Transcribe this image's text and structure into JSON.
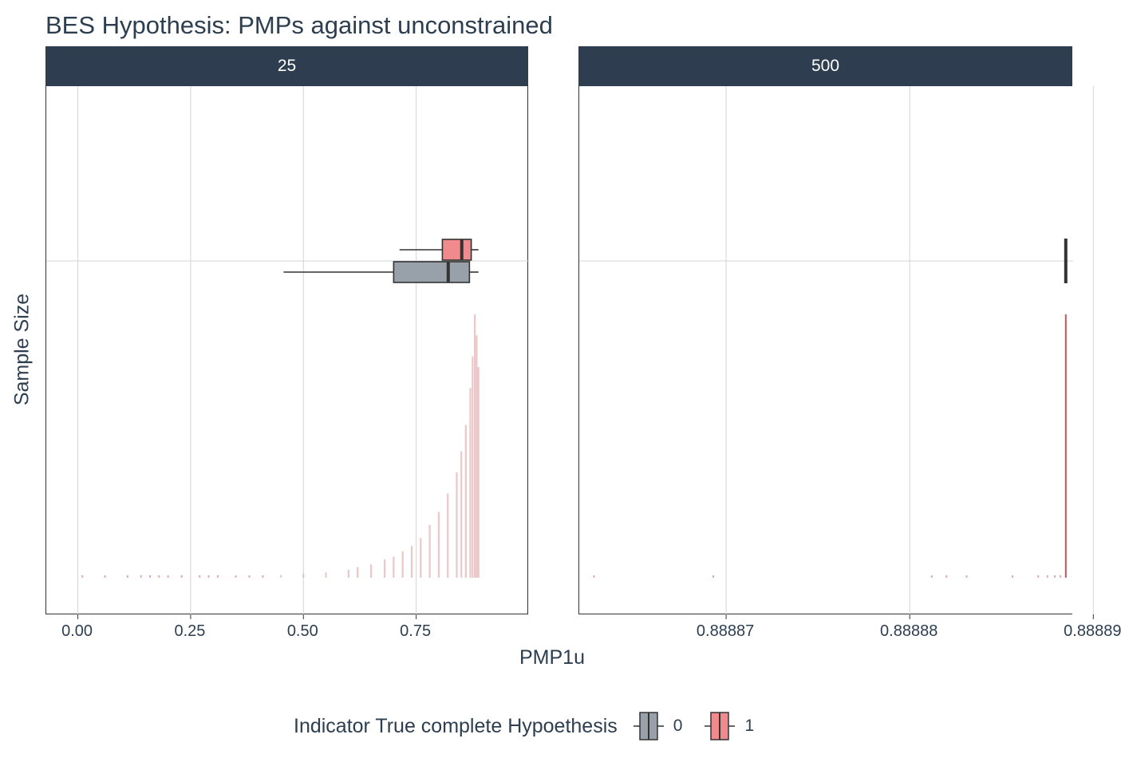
{
  "chart_data": {
    "type": "boxplot_with_histogram",
    "title": "BES Hypothesis: PMPs against unconstrained",
    "xlabel": "PMP1u",
    "ylabel": "Sample Size",
    "legend": {
      "title": "Indicator True complete Hypoethesis",
      "placement": "bottom",
      "entries": [
        {
          "label": "0",
          "color": "#98a1aa"
        },
        {
          "label": "1",
          "color": "#f08a8c"
        }
      ]
    },
    "panels": [
      {
        "strip": "25",
        "xlim": [
          -0.07,
          1.0
        ],
        "xticks": [
          {
            "value": 0.0,
            "label": "0.00"
          },
          {
            "value": 0.25,
            "label": "0.25"
          },
          {
            "value": 0.5,
            "label": "0.50"
          },
          {
            "value": 0.75,
            "label": "0.75"
          }
        ],
        "boxes": [
          {
            "group": "1",
            "whisker_low": 0.713,
            "q1": 0.808,
            "median": 0.851,
            "q3": 0.872,
            "whisker_high": 0.888
          },
          {
            "group": "0",
            "whisker_low": 0.456,
            "q1": 0.7,
            "median": 0.821,
            "q3": 0.868,
            "whisker_high": 0.888
          }
        ],
        "histogram": {
          "bin_width": 0.004,
          "bins": [
            [
              0.45,
              0.01
            ],
            [
              0.5,
              0.015
            ],
            [
              0.55,
              0.02
            ],
            [
              0.6,
              0.03
            ],
            [
              0.62,
              0.04
            ],
            [
              0.65,
              0.05
            ],
            [
              0.68,
              0.07
            ],
            [
              0.7,
              0.08
            ],
            [
              0.72,
              0.1
            ],
            [
              0.74,
              0.12
            ],
            [
              0.76,
              0.15
            ],
            [
              0.78,
              0.2
            ],
            [
              0.8,
              0.25
            ],
            [
              0.82,
              0.32
            ],
            [
              0.84,
              0.4
            ],
            [
              0.85,
              0.48
            ],
            [
              0.86,
              0.58
            ],
            [
              0.87,
              0.72
            ],
            [
              0.875,
              0.84
            ],
            [
              0.88,
              1.0
            ],
            [
              0.884,
              0.92
            ],
            [
              0.888,
              0.8
            ]
          ],
          "sparse_points": [
            0.01,
            0.06,
            0.11,
            0.14,
            0.16,
            0.18,
            0.2,
            0.23,
            0.27,
            0.29,
            0.31,
            0.35,
            0.38,
            0.41
          ]
        }
      },
      {
        "strip": "500",
        "xlim": [
          0.888862,
          0.8888889
        ],
        "xticks": [
          {
            "value": 0.88887,
            "label": "0.88887"
          },
          {
            "value": 0.88888,
            "label": "0.88888"
          },
          {
            "value": 0.88889,
            "label": "0.88889"
          }
        ],
        "boxes": [
          {
            "group": "1",
            "whisker_low": 0.8888885,
            "q1": 0.8888885,
            "median": 0.8888885,
            "q3": 0.8888885,
            "whisker_high": 0.8888885
          },
          {
            "group": "0",
            "whisker_low": 0.8888885,
            "q1": 0.8888885,
            "median": 0.8888885,
            "q3": 0.8888885,
            "whisker_high": 0.8888885
          }
        ],
        "histogram": {
          "bins": [
            [
              0.8888885,
              1.0
            ]
          ],
          "sparse_points": [
            0.8888628,
            0.8888693,
            0.8888812,
            0.888882,
            0.8888831,
            0.8888856,
            0.888887,
            0.8888875,
            0.8888879,
            0.8888882
          ]
        }
      }
    ]
  }
}
